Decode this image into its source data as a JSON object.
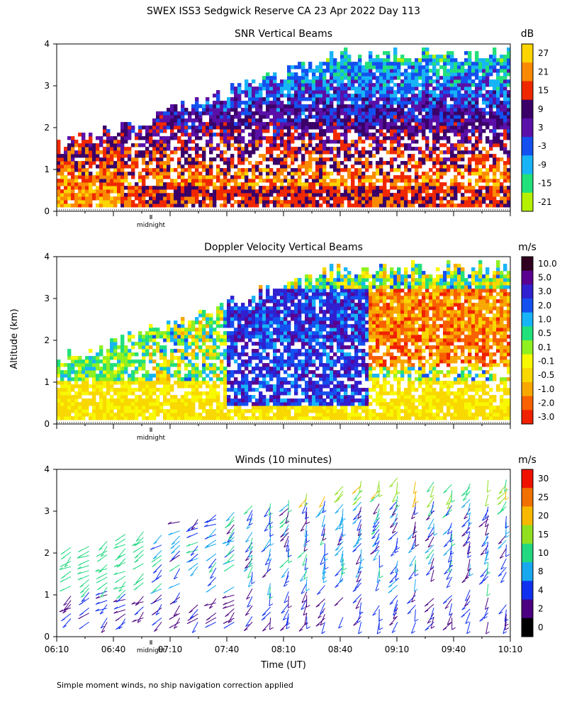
{
  "page": {
    "title": "SWEX ISS3 Sedgwick Reserve CA  23 Apr 2022 Day 113",
    "y_axis_label": "Altitude (km)",
    "x_axis_label": "Time (UT)",
    "footnote": "Simple moment winds, no ship navigation correction applied"
  },
  "chart_data": [
    {
      "type": "heatmap",
      "title": "SNR Vertical Beams",
      "colorbar_unit": "dB",
      "colorbar_labels": [
        "27",
        "21",
        "15",
        "9",
        "3",
        "-3",
        "-9",
        "-15",
        "-21"
      ],
      "colorbar_colors": [
        "#fcd400",
        "#fc8a00",
        "#f02800",
        "#3a0068",
        "#5a10a8",
        "#1450f0",
        "#18b4f8",
        "#22e07a",
        "#b4f000"
      ],
      "ylim": [
        0,
        4
      ],
      "y_ticks": [
        "0",
        "1",
        "2",
        "3",
        "4"
      ],
      "midnight_label": "midnight"
    },
    {
      "type": "heatmap",
      "title": "Doppler Velocity Vertical Beams",
      "colorbar_unit": "m/s",
      "colorbar_labels": [
        "10.0",
        "5.0",
        "3.0",
        "2.0",
        "1.0",
        "0.5",
        "0.1",
        "-0.1",
        "-0.5",
        "-1.0",
        "-2.0",
        "-3.0"
      ],
      "colorbar_colors": [
        "#300020",
        "#5a0090",
        "#3020d0",
        "#1450f0",
        "#18b4f8",
        "#22e07a",
        "#90f020",
        "#f8f800",
        "#f8d800",
        "#f8a800",
        "#f86000",
        "#f02000"
      ],
      "ylim": [
        0,
        4
      ],
      "y_ticks": [
        "0",
        "1",
        "2",
        "3",
        "4"
      ],
      "midnight_label": "midnight"
    },
    {
      "type": "scatter",
      "title": "Winds (10 minutes)",
      "colorbar_unit": "m/s",
      "colorbar_labels": [
        "30",
        "25",
        "20",
        "15",
        "10",
        "8",
        "4",
        "2",
        "0"
      ],
      "colorbar_colors": [
        "#f01000",
        "#f07000",
        "#f8b800",
        "#90e020",
        "#22d880",
        "#18a8f0",
        "#1030f0",
        "#4a0080",
        "#000000"
      ],
      "ylim": [
        0,
        4
      ],
      "y_ticks": [
        "0",
        "1",
        "2",
        "3",
        "4"
      ],
      "x_ticks": [
        "06:10",
        "06:40",
        "07:10",
        "07:40",
        "08:10",
        "08:40",
        "09:10",
        "09:40",
        "10:10"
      ],
      "midnight_label": "midnight"
    }
  ]
}
